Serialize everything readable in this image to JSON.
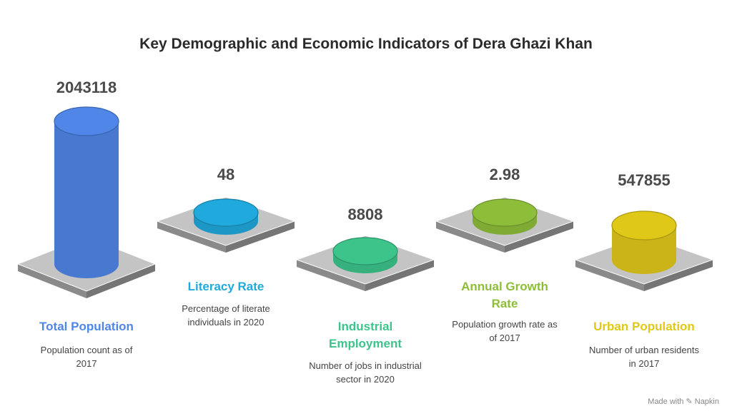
{
  "colors": {
    "blue": "#4f86e8",
    "cyan": "#20a9dc",
    "green": "#3cc48a",
    "lime": "#8dbe3a",
    "yellow": "#e0c819",
    "plate_top": "#c4c4c4",
    "plate_side": "#8a8a8a"
  },
  "footer": "Made with ✎ Napkin",
  "chart_data": {
    "type": "bar",
    "title": "Key Demographic and Economic Indicators of Dera Ghazi Khan",
    "items": [
      {
        "key": "total-population",
        "value": "2043118",
        "label": "Total Population",
        "description": "Population count as of 2017",
        "color": "#4f86e8"
      },
      {
        "key": "literacy-rate",
        "value": "48",
        "label": "Literacy Rate",
        "description": "Percentage of literate individuals in 2020",
        "color": "#20a9dc"
      },
      {
        "key": "industrial-employment",
        "value": "8808",
        "label": "Industrial Employment",
        "description": "Number of jobs in industrial sector in 2020",
        "color": "#3cc48a"
      },
      {
        "key": "annual-growth-rate",
        "value": "2.98",
        "label": "Annual Growth Rate",
        "description": "Population growth rate as of 2017",
        "color": "#8dbe3a"
      },
      {
        "key": "urban-population",
        "value": "547855",
        "label": "Urban Population",
        "description": "Number of urban residents in 2017",
        "color": "#e0c819"
      }
    ]
  }
}
